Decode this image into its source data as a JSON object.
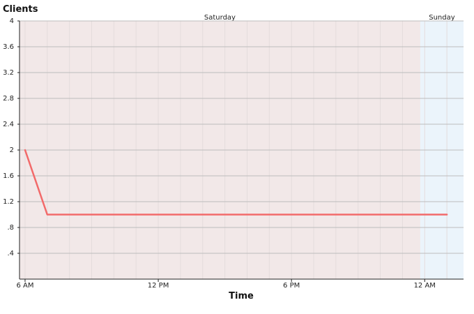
{
  "chart_data": {
    "type": "line",
    "title": "",
    "ylabel": "Clients",
    "xlabel": "Time",
    "ylim": [
      0,
      4
    ],
    "y_ticks": [
      ".4",
      ".8",
      "1.2",
      "1.6",
      "2",
      "2.4",
      "2.8",
      "3.2",
      "3.6",
      "4"
    ],
    "x_ticks": [
      "6 AM",
      "12 PM",
      "6 PM",
      "12 AM"
    ],
    "bands": [
      {
        "label": "Saturday",
        "color": "#f2e8e8"
      },
      {
        "label": "Sunday",
        "color": "#ebf4fb"
      }
    ],
    "series": [
      {
        "color": "#f26a6a",
        "points": [
          {
            "x": "6 AM",
            "y": 2
          },
          {
            "x": "7 AM",
            "y": 1
          },
          {
            "x": "8 AM",
            "y": 1
          },
          {
            "x": "9 AM",
            "y": 1
          },
          {
            "x": "10 AM",
            "y": 1
          },
          {
            "x": "11 AM",
            "y": 1
          },
          {
            "x": "12 PM",
            "y": 1
          },
          {
            "x": "1 PM",
            "y": 1
          },
          {
            "x": "2 PM",
            "y": 1
          },
          {
            "x": "3 PM",
            "y": 1
          },
          {
            "x": "4 PM",
            "y": 1
          },
          {
            "x": "5 PM",
            "y": 1
          },
          {
            "x": "6 PM",
            "y": 1
          },
          {
            "x": "7 PM",
            "y": 1
          },
          {
            "x": "8 PM",
            "y": 1
          },
          {
            "x": "9 PM",
            "y": 1
          },
          {
            "x": "10 PM",
            "y": 1
          },
          {
            "x": "11 PM",
            "y": 1
          },
          {
            "x": "12 AM",
            "y": 1
          },
          {
            "x": "1 AM",
            "y": 1
          }
        ]
      }
    ],
    "grid": true,
    "legend": "none"
  }
}
